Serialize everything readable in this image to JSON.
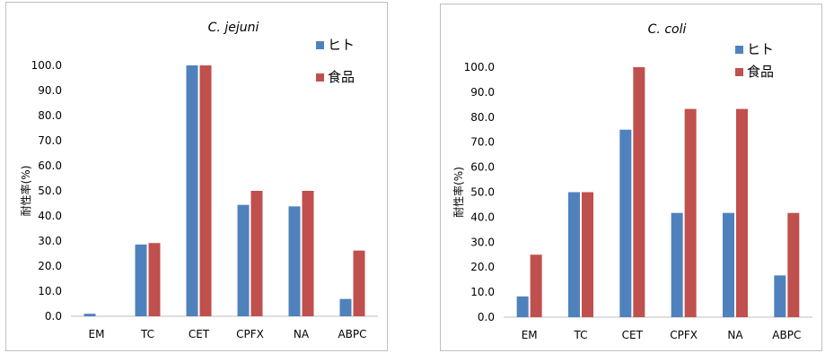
{
  "chart_data": [
    {
      "type": "bar",
      "title": "C. jejuni",
      "ylabel": "耐性率(%)",
      "xlabel": "",
      "categories": [
        "EM",
        "TC",
        "CET",
        "CPFX",
        "NA",
        "ABPC"
      ],
      "series": [
        {
          "name": "ヒト",
          "color": "#4f81bd",
          "values": [
            1.0,
            28.6,
            100.0,
            44.4,
            43.8,
            6.9
          ]
        },
        {
          "name": "食品",
          "color": "#c0504d",
          "values": [
            0.0,
            29.2,
            100.0,
            50.0,
            50.0,
            26.2
          ]
        }
      ],
      "ylim": [
        0,
        100
      ],
      "yticks": [
        "0.0",
        "10.0",
        "20.0",
        "30.0",
        "40.0",
        "50.0",
        "60.0",
        "70.0",
        "80.0",
        "90.0",
        "100.0"
      ],
      "grid": false,
      "legend": "top-right"
    },
    {
      "type": "bar",
      "title": "C. coli",
      "ylabel": "耐性率(%)",
      "xlabel": "",
      "categories": [
        "EM",
        "TC",
        "CET",
        "CPFX",
        "NA",
        "ABPC"
      ],
      "series": [
        {
          "name": "ヒト",
          "color": "#4f81bd",
          "values": [
            8.3,
            50.0,
            75.0,
            41.7,
            41.7,
            16.7
          ]
        },
        {
          "name": "食品",
          "color": "#c0504d",
          "values": [
            25.0,
            50.0,
            100.0,
            83.3,
            83.3,
            41.7
          ]
        }
      ],
      "ylim": [
        0,
        100
      ],
      "yticks": [
        "0.0",
        "10.0",
        "20.0",
        "30.0",
        "40.0",
        "50.0",
        "60.0",
        "70.0",
        "80.0",
        "90.0",
        "100.0"
      ],
      "grid": false,
      "legend": "top-right"
    }
  ]
}
